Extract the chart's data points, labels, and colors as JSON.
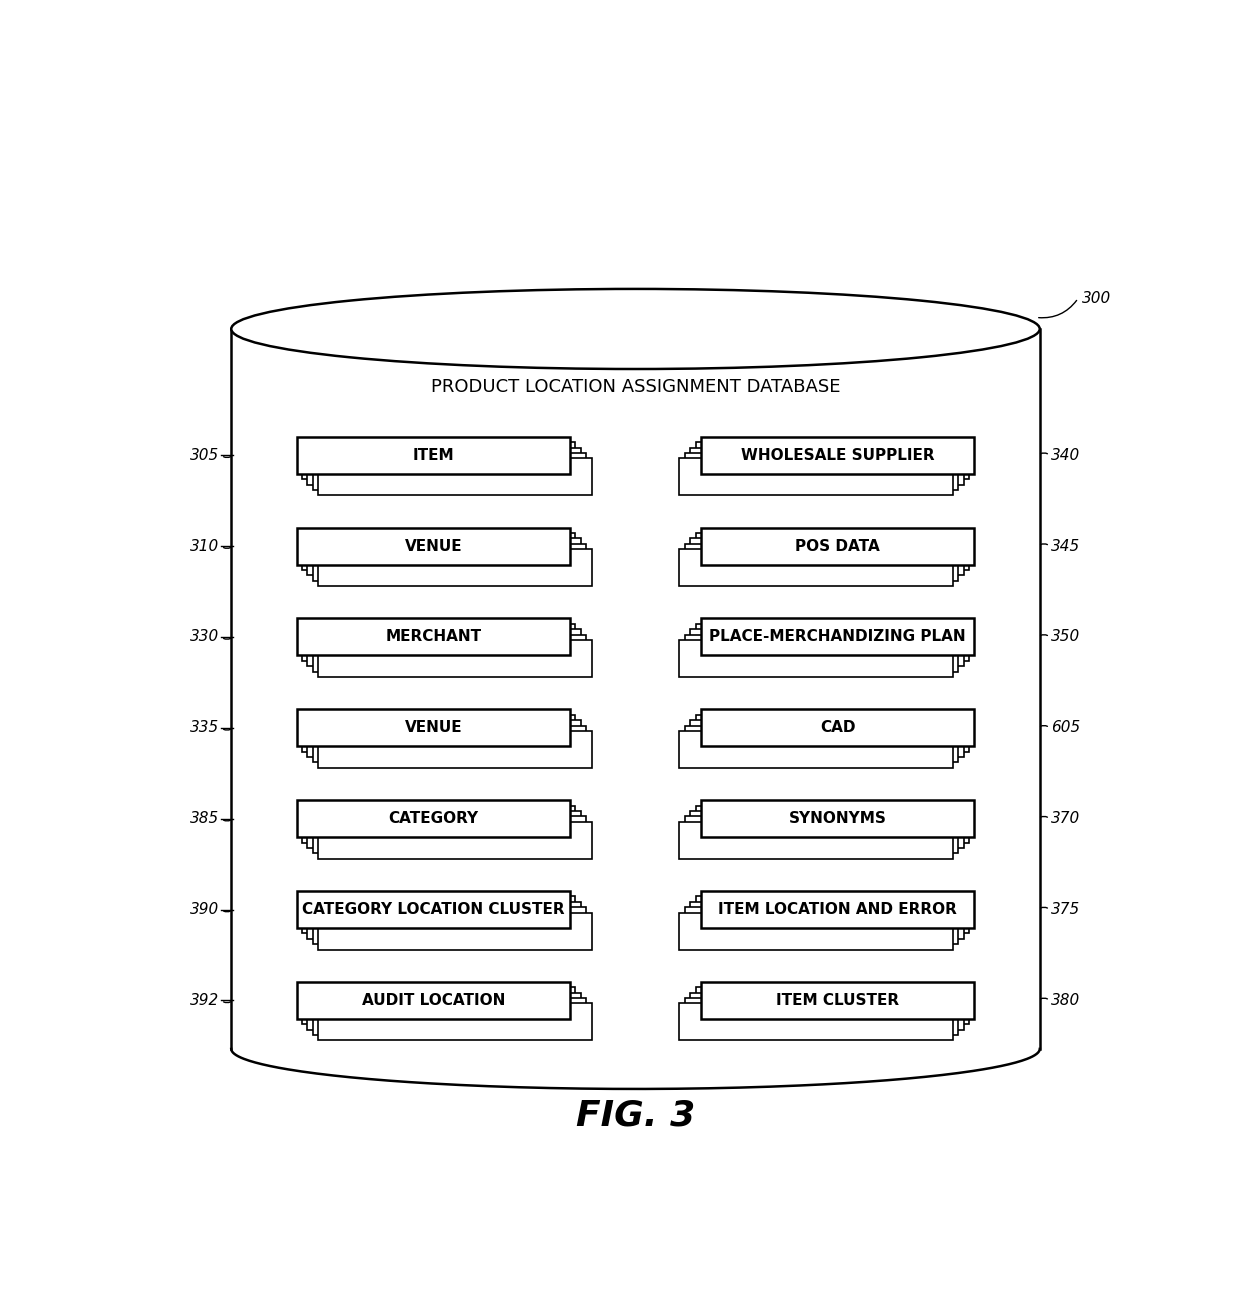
{
  "title": "PRODUCT LOCATION ASSIGNMENT DATABASE",
  "fig_label": "FIG. 3",
  "db_label": "300",
  "bg_color": "#ffffff",
  "left_tables": [
    {
      "label": "ITEM",
      "ref": "305",
      "row": 0
    },
    {
      "label": "VENUE",
      "ref": "310",
      "row": 1
    },
    {
      "label": "MERCHANT",
      "ref": "330",
      "row": 2
    },
    {
      "label": "VENUE",
      "ref": "335",
      "row": 3
    },
    {
      "label": "CATEGORY",
      "ref": "385",
      "row": 4
    },
    {
      "label": "CATEGORY LOCATION CLUSTER",
      "ref": "390",
      "row": 5
    },
    {
      "label": "AUDIT LOCATION",
      "ref": "392",
      "row": 6
    }
  ],
  "right_tables": [
    {
      "label": "WHOLESALE SUPPLIER",
      "ref": "340",
      "row": 0
    },
    {
      "label": "POS DATA",
      "ref": "345",
      "row": 1
    },
    {
      "label": "PLACE-MERCHANDIZING PLAN",
      "ref": "350",
      "row": 2
    },
    {
      "label": "CAD",
      "ref": "605",
      "row": 3
    },
    {
      "label": "SYNONYMS",
      "ref": "370",
      "row": 4
    },
    {
      "label": "ITEM LOCATION AND ERROR",
      "ref": "375",
      "row": 5
    },
    {
      "label": "ITEM CLUSTER",
      "ref": "380",
      "row": 6
    }
  ],
  "text_color": "#000000",
  "title_fontsize": 13,
  "label_fontsize": 11,
  "ref_fontsize": 11,
  "figlabel_fontsize": 26
}
